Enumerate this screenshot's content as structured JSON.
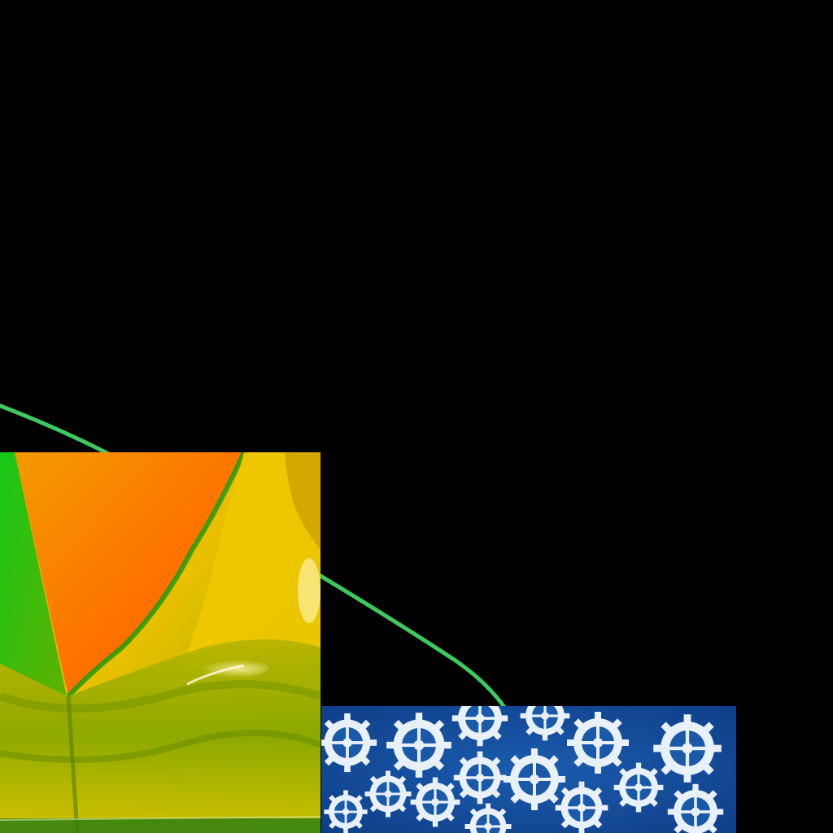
{
  "scene": {
    "background_color": "#000000",
    "arc_color": "#3ec860",
    "foil_photo": {
      "subject": "iridescent-foil-abstract",
      "colors": [
        "#f7a000",
        "#ff7a00",
        "#f2c400",
        "#1ec21a",
        "#8cbc00",
        "#d9d400"
      ]
    },
    "gears_photo": {
      "subject": "cyanotype-gears",
      "colors": [
        "#0f3f8c",
        "#1a5fb0",
        "#e6eef8",
        "#ffffff"
      ]
    }
  }
}
